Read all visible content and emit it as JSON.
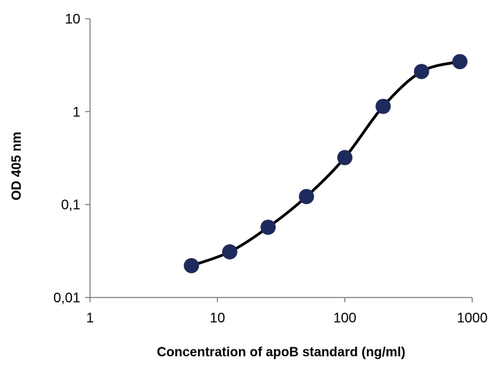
{
  "chart_data": {
    "type": "scatter",
    "title": "",
    "xlabel": "Concentration of apoB standard (ng/ml)",
    "ylabel": "OD 405 nm",
    "x_scale": "log",
    "y_scale": "log",
    "xlim": [
      1,
      1000
    ],
    "ylim": [
      0.01,
      10
    ],
    "x_ticks": [
      1,
      10,
      100,
      1000
    ],
    "x_tick_labels": [
      "1",
      "10",
      "100",
      "1000"
    ],
    "y_ticks": [
      0.01,
      0.1,
      1,
      10
    ],
    "y_tick_labels": [
      "0,01",
      "0,1",
      "1",
      "10"
    ],
    "grid": false,
    "legend": "none",
    "series": [
      {
        "marker_color": "#1f2a5c",
        "line_color": "#000000",
        "smoothed_line": true,
        "points": [
          {
            "x": 6.25,
            "y": 0.022
          },
          {
            "x": 12.5,
            "y": 0.031
          },
          {
            "x": 25,
            "y": 0.057
          },
          {
            "x": 50,
            "y": 0.122
          },
          {
            "x": 100,
            "y": 0.32
          },
          {
            "x": 200,
            "y": 1.14
          },
          {
            "x": 400,
            "y": 2.7
          },
          {
            "x": 800,
            "y": 3.45
          }
        ]
      }
    ]
  }
}
